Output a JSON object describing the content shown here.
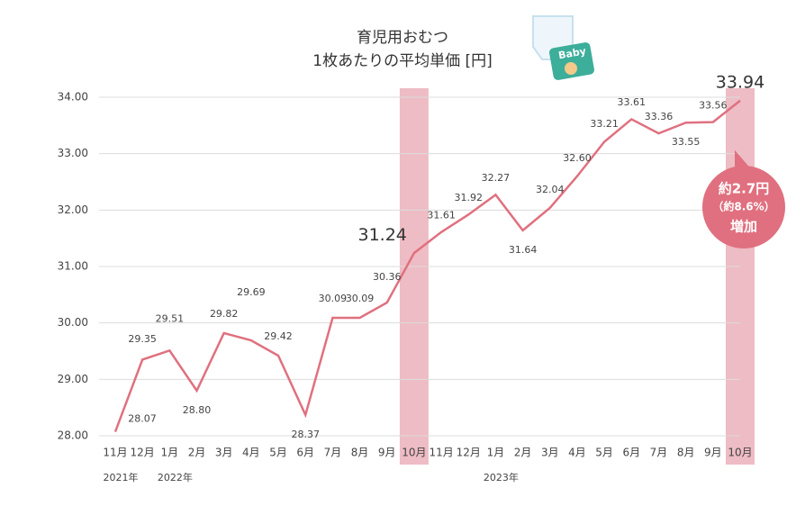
{
  "chart_data": {
    "type": "line",
    "title": [
      "育児用おむつ",
      "1枚あたりの平均単価 [円]"
    ],
    "categories": [
      "11月",
      "12月",
      "1月",
      "2月",
      "3月",
      "4月",
      "5月",
      "6月",
      "7月",
      "8月",
      "9月",
      "10月",
      "11月",
      "12月",
      "1月",
      "2月",
      "3月",
      "4月",
      "5月",
      "6月",
      "7月",
      "8月",
      "9月",
      "10月"
    ],
    "year_labels": [
      "2021年",
      "2022年",
      "2023年"
    ],
    "series": [
      {
        "color": "#e0707f",
        "values": [
          28.07,
          29.35,
          29.51,
          28.8,
          29.82,
          29.69,
          29.42,
          28.37,
          30.09,
          30.09,
          30.36,
          31.24,
          31.61,
          31.92,
          32.27,
          31.64,
          32.04,
          32.6,
          33.21,
          33.61,
          33.36,
          33.55,
          33.56,
          33.94
        ],
        "value_labels": [
          "28.07",
          "29.35",
          "29.51",
          "28.80",
          "29.82",
          "29.69",
          "29.42",
          "28.37",
          "30.09",
          "30.09",
          "30.36",
          "31.24",
          "31.61",
          "31.92",
          "32.27",
          "31.64",
          "32.04",
          "32.60",
          "33.21",
          "33.61",
          "33.36",
          "33.55",
          "33.56",
          "33.94"
        ]
      }
    ],
    "ylim": [
      28,
      34
    ],
    "yticks": [
      {
        "value": 28,
        "label": "28.00"
      },
      {
        "value": 29,
        "label": "29.00"
      },
      {
        "value": 30,
        "label": "30.00"
      },
      {
        "value": 31,
        "label": "31.00"
      },
      {
        "value": 32,
        "label": "32.00"
      },
      {
        "value": 33,
        "label": "33.00"
      },
      {
        "value": 34,
        "label": "34.00"
      }
    ],
    "grid": true,
    "highlights": [
      11,
      23
    ],
    "highlight_color": "#eebcc4",
    "callout": [
      "約2.7円",
      "（約8.6%）",
      "増加"
    ],
    "callout_color": "#e0707f"
  }
}
